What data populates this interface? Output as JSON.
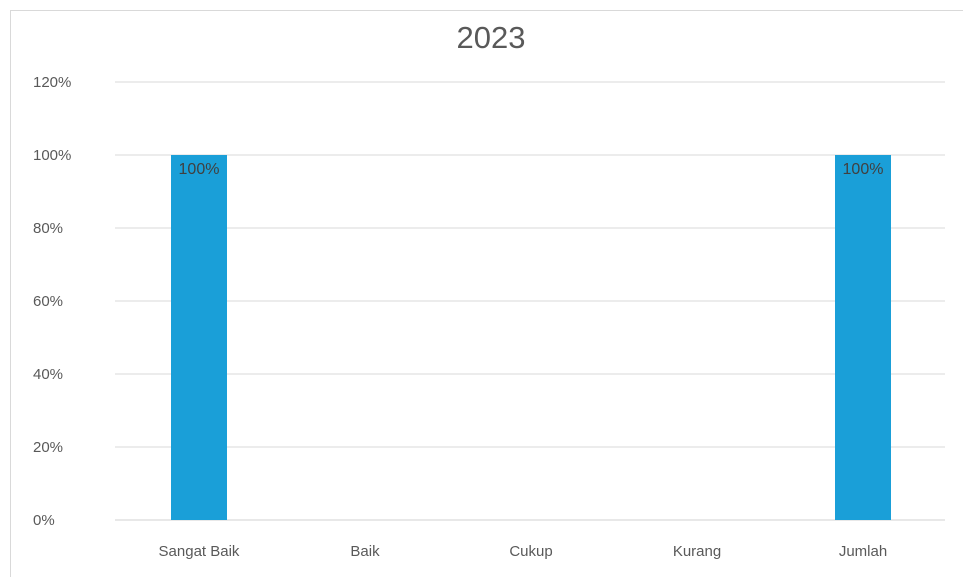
{
  "chart_data": {
    "type": "bar",
    "title": "2023",
    "categories": [
      "Sangat Baik",
      "Baik",
      "Cukup",
      "Kurang",
      "Jumlah"
    ],
    "series": [
      {
        "values": [
          100,
          0,
          0,
          0,
          100
        ]
      }
    ],
    "data_labels": [
      "100%",
      "",
      "",
      "",
      "100%"
    ],
    "y_ticks": [
      "0%",
      "20%",
      "40%",
      "60%",
      "80%",
      "100%",
      "120%"
    ],
    "ylim": [
      0,
      120
    ],
    "xlabel": "",
    "ylabel": "",
    "grid": true,
    "legend": "none",
    "colors": {
      "bar": "#1a9fd8",
      "grid": "#d9d9d9",
      "text": "#595959"
    }
  }
}
